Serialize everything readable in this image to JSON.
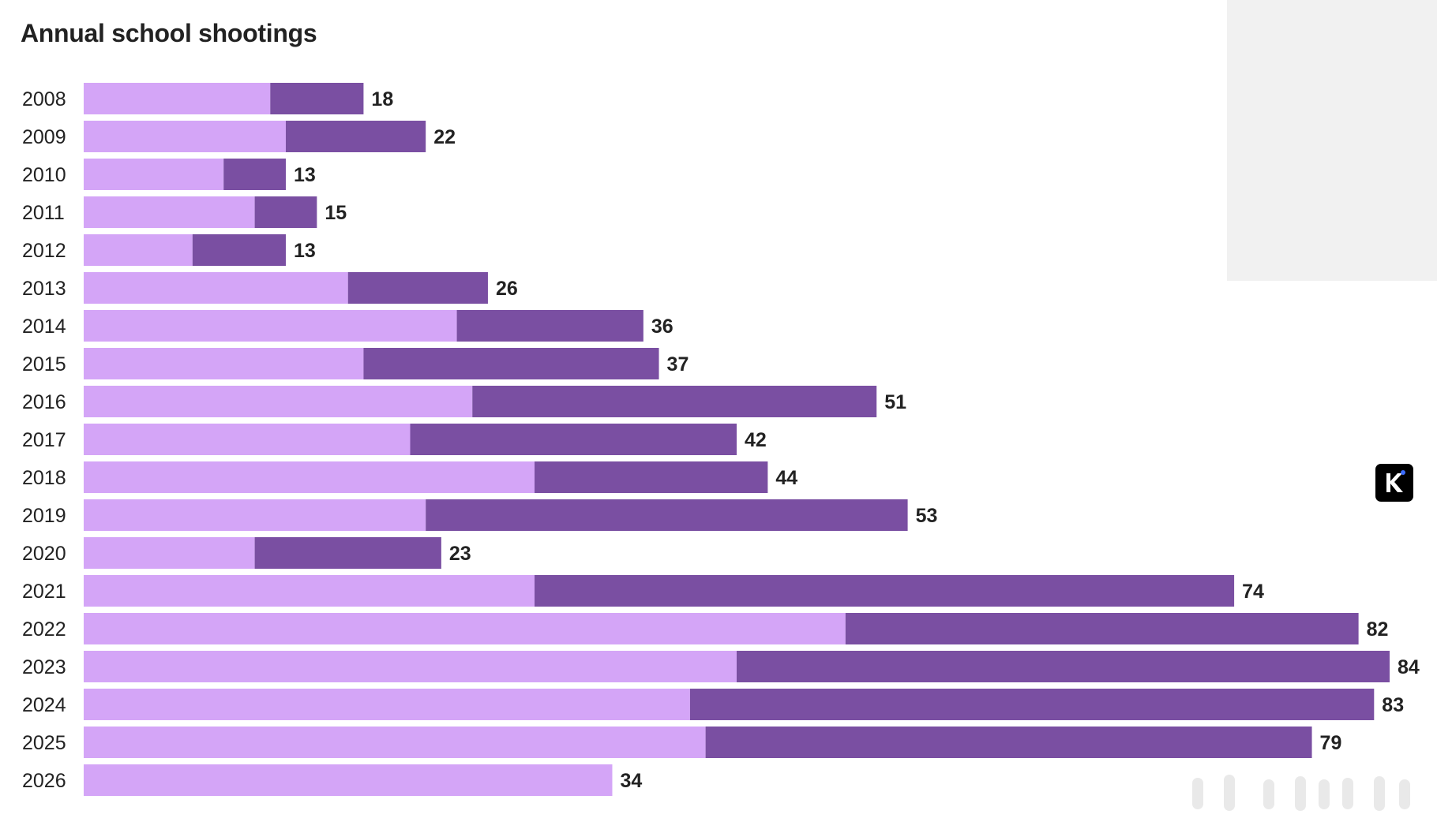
{
  "chart_data": {
    "type": "bar",
    "orientation": "horizontal",
    "stacked": true,
    "title": "Annual school shootings",
    "categories": [
      "2008",
      "2009",
      "2010",
      "2011",
      "2012",
      "2013",
      "2014",
      "2015",
      "2016",
      "2017",
      "2018",
      "2019",
      "2020",
      "2021",
      "2022",
      "2023",
      "2024",
      "2025",
      "2026"
    ],
    "series": [
      {
        "color": "#d4a5f7",
        "values": [
          12,
          13,
          9,
          11,
          7,
          17,
          24,
          18,
          25,
          21,
          29,
          22,
          11,
          29,
          49,
          42,
          39,
          40,
          34
        ]
      },
      {
        "color": "#7a4fa2",
        "values": [
          6,
          9,
          4,
          4,
          6,
          9,
          12,
          19,
          26,
          21,
          15,
          31,
          12,
          45,
          33,
          42,
          44,
          39,
          0
        ]
      }
    ],
    "totals": [
      18,
      22,
      13,
      15,
      13,
      26,
      36,
      37,
      51,
      42,
      44,
      53,
      23,
      74,
      82,
      84,
      83,
      79,
      34
    ],
    "xlim": [
      0,
      84
    ],
    "grid": false,
    "legend": "none"
  },
  "brand": {
    "logo_icon": "k-logo-icon",
    "logo_bg": "#000000",
    "logo_dot": "#3b6cff"
  }
}
